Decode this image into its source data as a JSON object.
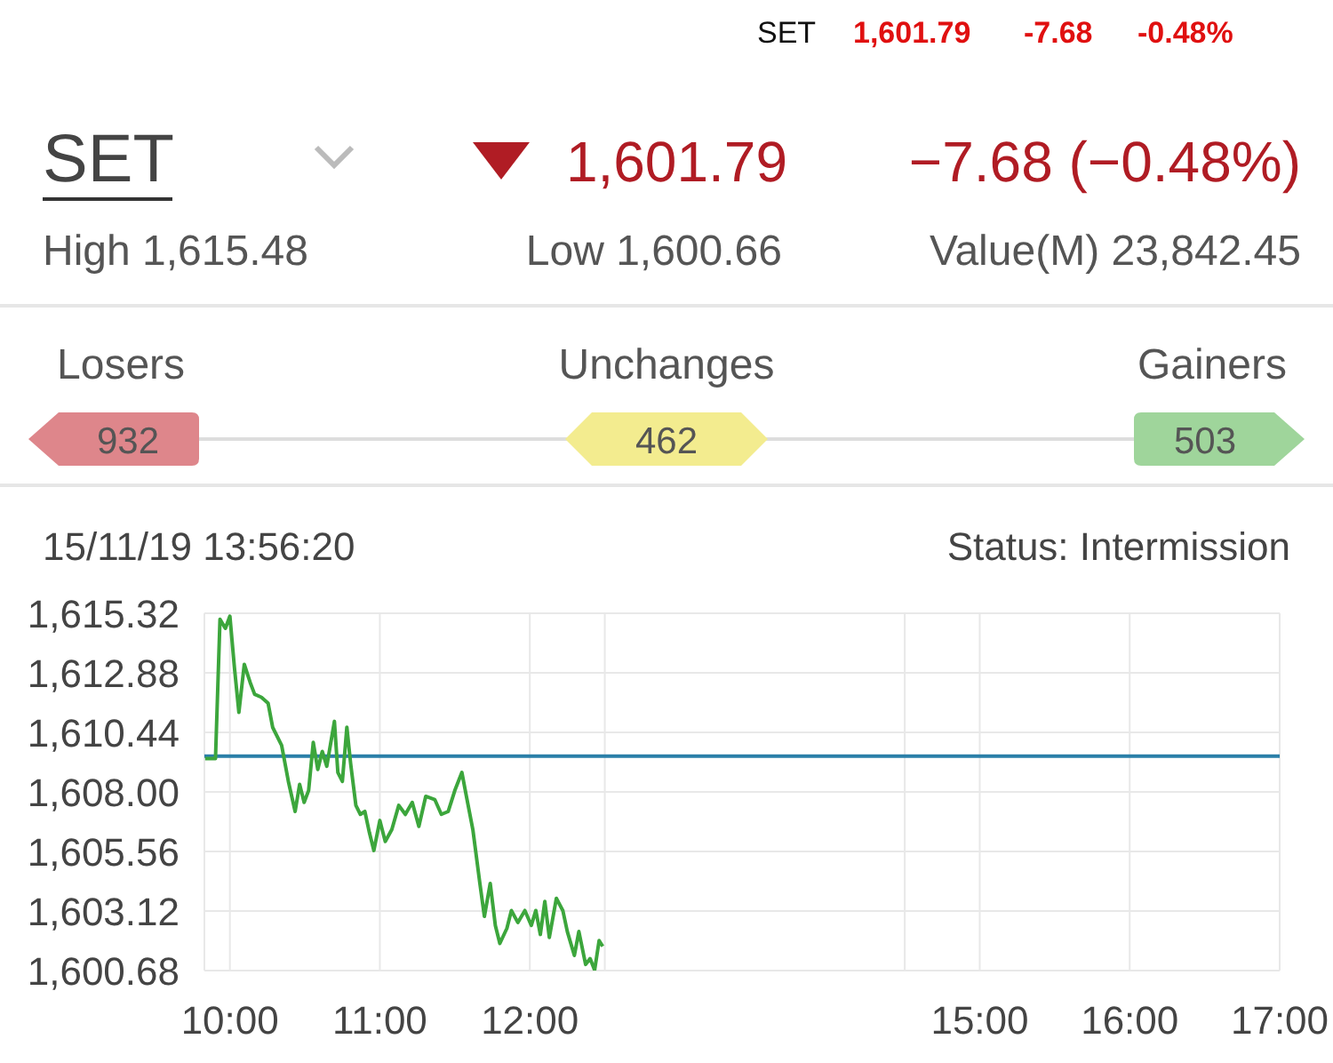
{
  "chart_data": [
    {
      "type": "other",
      "annotations": [
        "SET",
        "1,601.79",
        "-7.68",
        "-0.48%",
        "SET",
        "1,601.79",
        "−7.68 (−0.48%)",
        "High 1,615.48",
        "Low 1,600.66",
        "Value(M) 23,842.45",
        "Losers",
        "Unchanges",
        "Gainers",
        "932",
        "462",
        "503"
      ]
    },
    {
      "type": "line",
      "title": "15/11/19 13:56:20",
      "subtitle": "Status: Intermission",
      "marker": "none",
      "grid": true,
      "xlim": [
        9.83,
        17
      ],
      "xticks": [
        {
          "value": 10,
          "label": "10:00"
        },
        {
          "value": 11,
          "label": "11:00"
        },
        {
          "value": 12,
          "label": "12:00"
        },
        {
          "value": 12.5,
          "label": null
        },
        {
          "value": 14.5,
          "label": null
        },
        {
          "value": 15,
          "label": "15:00"
        },
        {
          "value": 16,
          "label": "16:00"
        },
        {
          "value": 17,
          "label": "17:00"
        }
      ],
      "ylim": [
        1600.68,
        1615.32
      ],
      "yticks": [
        {
          "value": 1600.68,
          "label": "1,600.68"
        },
        {
          "value": 1603.12,
          "label": "1,603.12"
        },
        {
          "value": 1605.56,
          "label": "1,605.56"
        },
        {
          "value": 1608,
          "label": "1,608.00"
        },
        {
          "value": 1610.44,
          "label": "1,610.44"
        },
        {
          "value": 1612.88,
          "label": "1,612.88"
        },
        {
          "value": 1615.32,
          "label": "1,615.32"
        }
      ],
      "ref_lines": [
        {
          "axis": "y",
          "value": 1609.47,
          "label": null,
          "color": "#2a7fa8"
        }
      ],
      "series": [
        {
          "color": "#3ca63c",
          "x": [
            9.835,
            9.904,
            9.934,
            9.97,
            10.0,
            10.03,
            10.06,
            10.096,
            10.135,
            10.165,
            10.21,
            10.255,
            10.285,
            10.345,
            10.39,
            10.435,
            10.465,
            10.495,
            10.525,
            10.556,
            10.586,
            10.616,
            10.646,
            10.697,
            10.72,
            10.75,
            10.78,
            10.805,
            10.84,
            10.87,
            10.9,
            10.93,
            10.96,
            11.0,
            11.036,
            11.08,
            11.126,
            11.17,
            11.216,
            11.26,
            11.306,
            11.366,
            11.41,
            11.456,
            11.5,
            11.547,
            11.577,
            11.62,
            11.667,
            11.697,
            11.736,
            11.77,
            11.8,
            11.847,
            11.877,
            11.92,
            11.967,
            12.01,
            12.04,
            12.07,
            12.1,
            12.13,
            12.177,
            12.22,
            12.25,
            12.297,
            12.327,
            12.372,
            12.402,
            12.432,
            12.462,
            12.486
          ],
          "values": [
            1609.37,
            1609.37,
            1615.07,
            1614.7,
            1615.2,
            1613.11,
            1611.26,
            1613.23,
            1612.49,
            1612.0,
            1611.88,
            1611.63,
            1610.65,
            1609.91,
            1608.43,
            1607.2,
            1608.31,
            1607.57,
            1608.06,
            1610.03,
            1608.92,
            1609.66,
            1609.05,
            1610.89,
            1608.8,
            1608.43,
            1610.65,
            1609.17,
            1607.45,
            1607.08,
            1607.2,
            1606.34,
            1605.6,
            1606.83,
            1605.97,
            1606.46,
            1607.45,
            1607.08,
            1607.57,
            1606.59,
            1607.82,
            1607.69,
            1607.08,
            1607.2,
            1608.06,
            1608.8,
            1607.82,
            1606.46,
            1604.25,
            1602.9,
            1604.25,
            1602.53,
            1601.79,
            1602.41,
            1603.14,
            1602.65,
            1603.14,
            1602.53,
            1603.14,
            1602.16,
            1603.51,
            1602.04,
            1603.64,
            1603.14,
            1602.28,
            1601.3,
            1602.28,
            1600.93,
            1601.17,
            1600.7,
            1601.91,
            1601.67
          ]
        }
      ]
    }
  ]
}
